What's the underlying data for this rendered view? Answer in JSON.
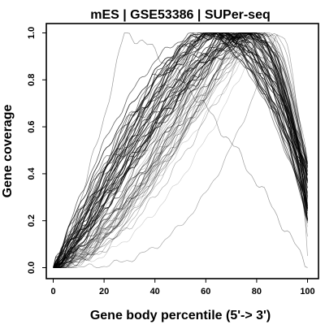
{
  "chart_data": {
    "type": "line",
    "title": "mES | GSE53386 | SUPer-seq",
    "xlabel": "Gene body percentile (5'-> 3')",
    "ylabel": "Gene coverage",
    "xlim": [
      0,
      100
    ],
    "ylim": [
      0,
      1
    ],
    "x_ticks": [
      "0",
      "20",
      "40",
      "60",
      "80",
      "100"
    ],
    "y_ticks": [
      "0.0",
      "0.2",
      "0.4",
      "0.6",
      "0.8",
      "1.0"
    ],
    "grid": false,
    "legend": "none",
    "line_color": "#000000",
    "series_count": 70,
    "typical_profiles": [
      {
        "x": [
          0,
          5,
          10,
          20,
          30,
          40,
          50,
          60,
          70,
          80,
          90,
          95,
          100
        ],
        "y": [
          0.0,
          0.08,
          0.2,
          0.45,
          0.65,
          0.8,
          0.91,
          0.98,
          1.0,
          0.99,
          0.85,
          0.6,
          0.25
        ]
      },
      {
        "x": [
          0,
          5,
          10,
          20,
          30,
          40,
          50,
          60,
          70,
          80,
          90,
          95,
          100
        ],
        "y": [
          0.0,
          0.04,
          0.12,
          0.3,
          0.46,
          0.6,
          0.72,
          0.84,
          0.93,
          1.0,
          0.95,
          0.75,
          0.3
        ]
      },
      {
        "x": [
          0,
          5,
          10,
          20,
          30,
          40,
          50,
          60,
          70,
          80,
          90,
          95,
          100
        ],
        "y": [
          0.0,
          0.35,
          0.7,
          0.95,
          1.0,
          0.97,
          0.93,
          0.88,
          0.8,
          0.7,
          0.45,
          0.25,
          0.0
        ]
      }
    ]
  }
}
